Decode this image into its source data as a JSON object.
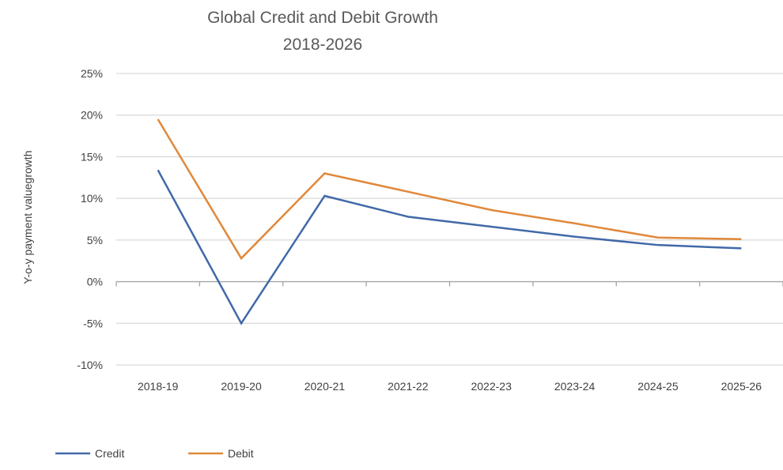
{
  "chart_data": {
    "type": "line",
    "title": "Global Credit and Debit Growth",
    "subtitle": "2018-2026",
    "xlabel": "",
    "ylabel": "Y-o-y payment valuegrowth",
    "categories": [
      "2018-19",
      "2019-20",
      "2020-21",
      "2021-22",
      "2022-23",
      "2023-24",
      "2024-25",
      "2025-26"
    ],
    "ylim": [
      -10,
      25
    ],
    "yticks": [
      -10,
      -5,
      0,
      5,
      10,
      15,
      20,
      25
    ],
    "ytick_labels": [
      "-10%",
      "-5%",
      "0%",
      "5%",
      "10%",
      "15%",
      "20%",
      "25%"
    ],
    "grid": true,
    "legend": "bottom-left",
    "series": [
      {
        "name": "Credit",
        "color": "#4169a8",
        "values": [
          13.4,
          -5.0,
          10.3,
          7.8,
          6.6,
          5.4,
          4.4,
          4.0
        ]
      },
      {
        "name": "Debit",
        "color": "#e0883a",
        "values": [
          19.5,
          2.8,
          13.0,
          10.8,
          8.6,
          7.0,
          5.3,
          5.1
        ]
      }
    ]
  }
}
